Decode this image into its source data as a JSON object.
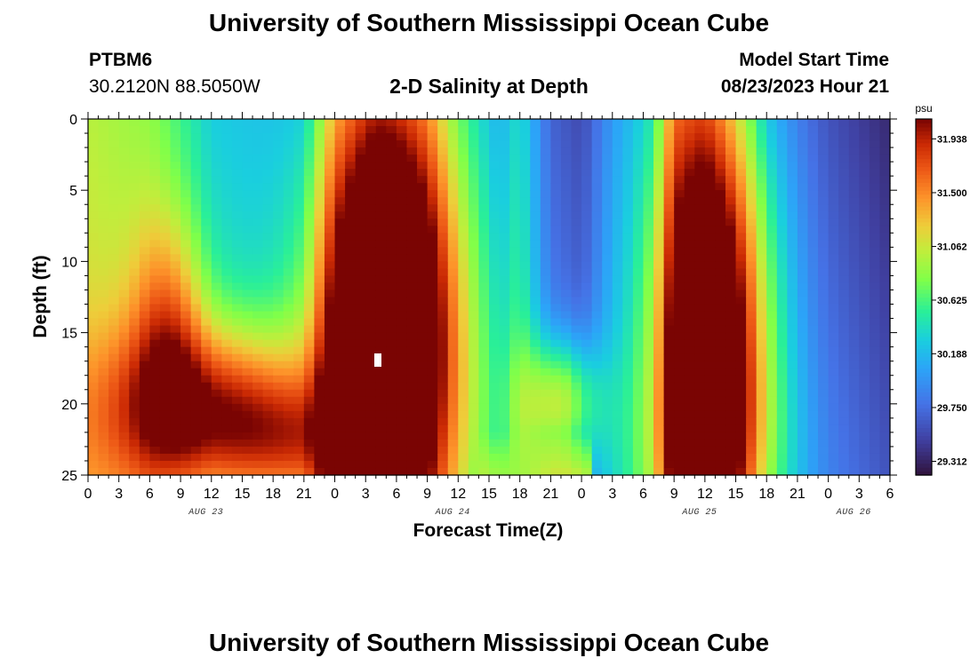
{
  "page": {
    "title_top": "University of Southern Mississippi Ocean Cube",
    "title_bottom": "University of Southern Mississippi Ocean Cube",
    "station_id": "PTBM6",
    "station_coords": "30.2120N  88.5050W",
    "subtitle": "2-D Salinity at Depth",
    "model_start_label": "Model Start Time",
    "model_start_value": "08/23/2023 Hour 21"
  },
  "chart_data": {
    "type": "heatmap",
    "title": "2-D Salinity at Depth",
    "xlabel": "Forecast Time(Z)",
    "ylabel": "Depth (ft)",
    "xlim": [
      0,
      78
    ],
    "ylim": [
      0,
      25
    ],
    "x_ticks": [
      0,
      3,
      6,
      9,
      12,
      15,
      18,
      21,
      24,
      27,
      30,
      33,
      36,
      39,
      42,
      45,
      48,
      51,
      54,
      57,
      60,
      63,
      66,
      69,
      72,
      75,
      78
    ],
    "x_tick_labels": [
      "0",
      "3",
      "6",
      "9",
      "12",
      "15",
      "18",
      "21",
      "0",
      "3",
      "6",
      "9",
      "12",
      "15",
      "18",
      "21",
      "0",
      "3",
      "6",
      "9",
      "12",
      "15",
      "18",
      "21",
      "0",
      "3",
      "6"
    ],
    "y_ticks": [
      0,
      5,
      10,
      15,
      20,
      25
    ],
    "y_tick_labels": [
      "0",
      "5",
      "10",
      "15",
      "20",
      "25"
    ],
    "date_labels": [
      {
        "text": "AUG 23",
        "x": 12
      },
      {
        "text": "AUG 24",
        "x": 36
      },
      {
        "text": "AUG 25",
        "x": 60
      },
      {
        "text": "AUG 26",
        "x": 75
      }
    ],
    "colorbar": {
      "unit": "psu",
      "min": 29.2,
      "max": 32.1,
      "tick_values": [
        31.938,
        31.5,
        31.062,
        30.625,
        30.188,
        29.75,
        29.312
      ],
      "tick_labels": [
        "31.938",
        "31.500",
        "31.062",
        "30.625",
        "30.188",
        "29.750",
        "29.312"
      ]
    },
    "field": {
      "base_x": [
        0,
        6,
        12,
        18,
        21,
        24,
        28,
        33,
        36,
        40,
        42,
        45,
        48,
        51,
        55,
        57,
        60,
        66,
        72,
        78
      ],
      "base_v": [
        31.0,
        30.85,
        30.3,
        30.2,
        30.15,
        30.9,
        31.15,
        30.95,
        30.5,
        30.1,
        30.4,
        29.7,
        29.55,
        30.0,
        30.3,
        31.2,
        31.1,
        30.0,
        29.6,
        29.35
      ],
      "bottom_boost": 0.25,
      "bottom_gap": {
        "x_from": 38,
        "x_to": 49,
        "v": 30.75
      },
      "blobs": [
        {
          "x": 29,
          "z": 13,
          "sx": 4.6,
          "sz": 10.0,
          "a": 2.0
        },
        {
          "x": 29,
          "z": 21,
          "sx": 6.0,
          "sz": 7.0,
          "a": 0.4
        },
        {
          "x": 12,
          "z": 20.5,
          "sx": 7.0,
          "sz": 4.2,
          "a": 1.45
        },
        {
          "x": 8,
          "z": 14.0,
          "sx": 2.5,
          "sz": 5.5,
          "a": 0.7
        },
        {
          "x": 20,
          "z": 23.0,
          "sx": 5.0,
          "sz": 3.0,
          "a": 0.6
        },
        {
          "x": 46,
          "z": 20.0,
          "sx": 2.6,
          "sz": 3.2,
          "a": 1.15
        },
        {
          "x": 61,
          "z": 15.0,
          "sx": 3.8,
          "sz": 11.0,
          "a": 1.85
        },
        {
          "x": 61,
          "z": 23,
          "sx": 4.5,
          "sz": 5.0,
          "a": 0.4
        }
      ]
    }
  }
}
